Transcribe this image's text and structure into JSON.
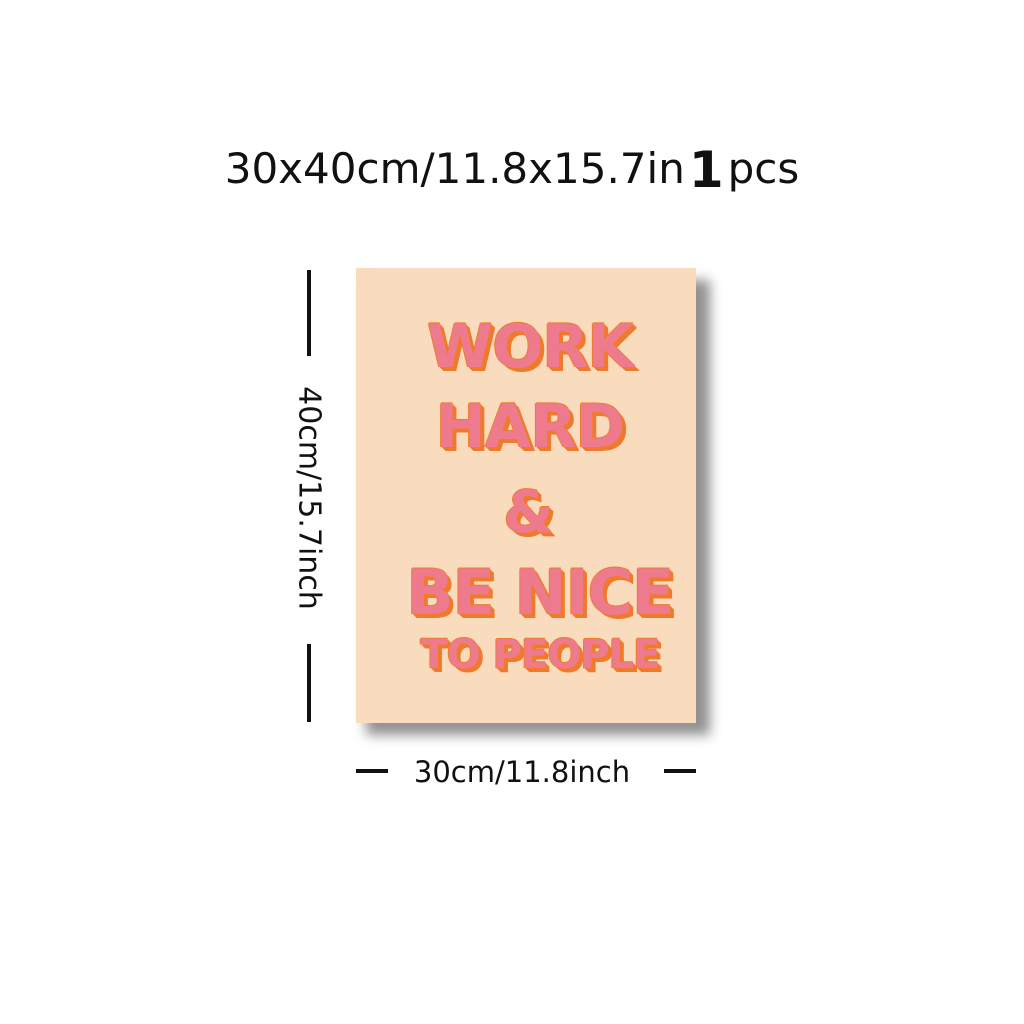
{
  "headline": {
    "size": "30x40cm/11.8x15.7in",
    "quantity": "1",
    "unit": "pcs"
  },
  "poster": {
    "background_color": "#f9dcbd",
    "text_color": "#ee7a8e",
    "shadow_color": "#f07a2c",
    "lines": [
      "WORK",
      "HARD",
      "&",
      "BE NICE",
      "TO PEOPLE"
    ]
  },
  "dimensions": {
    "height_label": "40cm/15.7inch",
    "width_label": "30cm/11.8inch"
  }
}
